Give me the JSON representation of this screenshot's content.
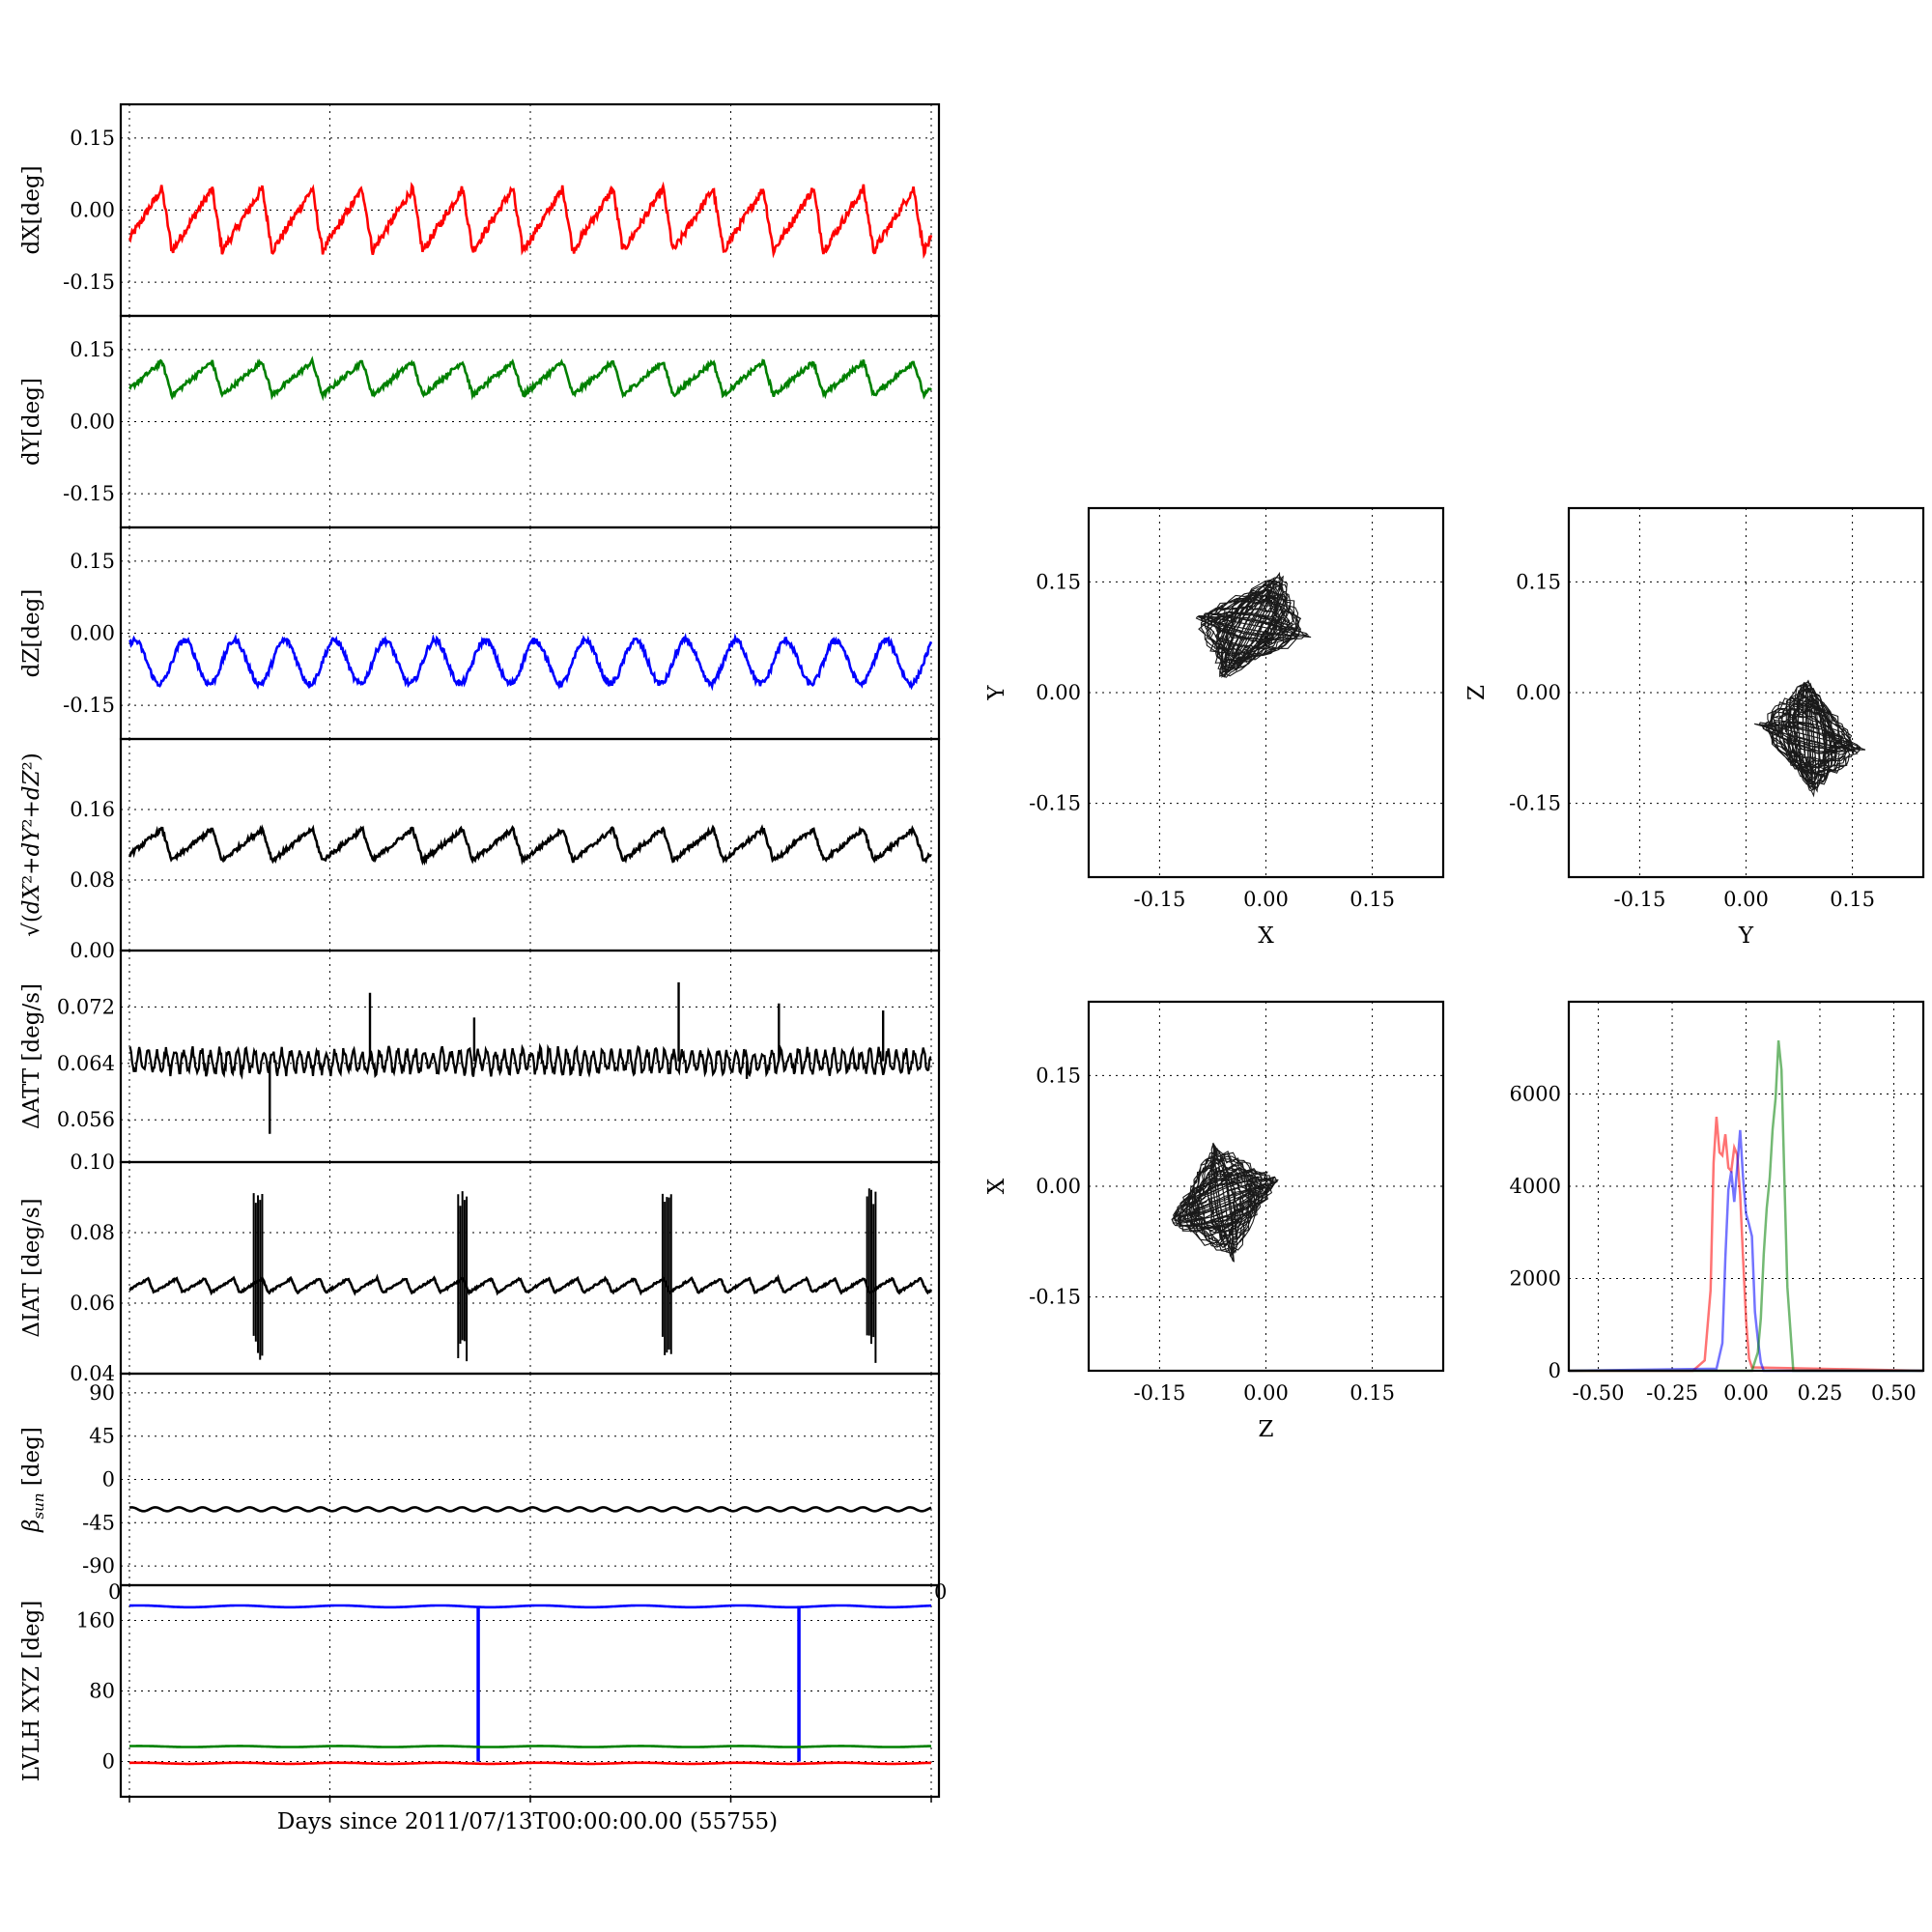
{
  "xlabel_bottom": "Days since 2011/07/13T00:00:00.00 (55755)",
  "stray_tick_left": "0",
  "stray_tick_right": "0",
  "colors": {
    "red": "#ff0000",
    "green": "#008000",
    "blue": "#0000ff",
    "black": "#000000"
  },
  "chart_data": [
    {
      "type": "line",
      "id": "dx",
      "ylabel": "dX[deg]",
      "ylim": [
        -0.22,
        0.22
      ],
      "yticks": [
        "-0.15",
        "0.00",
        "0.15"
      ],
      "ytick_values": [
        -0.15,
        0.0,
        0.15
      ],
      "grid": true,
      "series": [
        {
          "color": "#ff0000",
          "baseline": -0.02,
          "amplitude": 0.065,
          "cycles": 16,
          "shape": "sawtooth"
        }
      ]
    },
    {
      "type": "line",
      "id": "dy",
      "ylabel": "dY[deg]",
      "ylim": [
        -0.22,
        0.22
      ],
      "yticks": [
        "-0.15",
        "0.00",
        "0.15"
      ],
      "ytick_values": [
        -0.15,
        0.0,
        0.15
      ],
      "grid": true,
      "series": [
        {
          "color": "#008000",
          "baseline": 0.09,
          "amplitude": 0.035,
          "cycles": 16,
          "shape": "sawtooth"
        }
      ]
    },
    {
      "type": "line",
      "id": "dz",
      "ylabel": "dZ[deg]",
      "ylim": [
        -0.22,
        0.22
      ],
      "yticks": [
        "-0.15",
        "0.00",
        "0.15"
      ],
      "ytick_values": [
        -0.15,
        0.0,
        0.15
      ],
      "grid": true,
      "series": [
        {
          "color": "#0000ff",
          "baseline": -0.06,
          "amplitude": 0.045,
          "cycles": 16,
          "shape": "sine"
        }
      ]
    },
    {
      "type": "line",
      "id": "dr",
      "ylabel": "sqrt(dX²+dY²+dZ²)",
      "ylim": [
        0.0,
        0.24
      ],
      "yticks": [
        "0.00",
        "0.08",
        "0.16"
      ],
      "ytick_values": [
        0.0,
        0.08,
        0.16
      ],
      "grid": true,
      "series": [
        {
          "color": "#000000",
          "baseline": 0.12,
          "amplitude": 0.018,
          "cycles": 16,
          "shape": "sawtooth"
        }
      ]
    },
    {
      "type": "line",
      "id": "datt",
      "ylabel": "ΔATT [deg/s]",
      "ylim": [
        0.05,
        0.08
      ],
      "yticks": [
        "0.056",
        "0.064",
        "0.072"
      ],
      "ytick_values": [
        0.056,
        0.064,
        0.072
      ],
      "grid": true,
      "series": [
        {
          "color": "#000000",
          "baseline": 0.0643,
          "amplitude": 0.0015,
          "cycles": 90,
          "shape": "sine"
        }
      ],
      "spikes": [
        [
          0.175,
          0.054
        ],
        [
          0.3,
          0.074
        ],
        [
          0.43,
          0.0705
        ],
        [
          0.685,
          0.0755
        ],
        [
          0.81,
          0.0725
        ],
        [
          0.94,
          0.0715
        ],
        [
          0.77,
          0.0618
        ]
      ]
    },
    {
      "type": "line",
      "id": "diat",
      "ylabel": "ΔIAT [deg/s]",
      "ylim": [
        0.04,
        0.1
      ],
      "yticks": [
        "0.04",
        "0.06",
        "0.08",
        "0.10"
      ],
      "ytick_values": [
        0.04,
        0.06,
        0.08,
        0.1
      ],
      "grid": true,
      "series": [
        {
          "color": "#000000",
          "baseline": 0.065,
          "amplitude": 0.002,
          "cycles": 28,
          "shape": "sawtooth"
        }
      ],
      "bursts": [
        0.155,
        0.41,
        0.665,
        0.92
      ],
      "burst_range": [
        0.043,
        0.093
      ]
    },
    {
      "type": "line",
      "id": "beta",
      "ylabel": "β_sun [deg]",
      "ylim": [
        -110,
        110
      ],
      "yticks": [
        "-90",
        "-45",
        "0",
        "45",
        "90"
      ],
      "ytick_values": [
        -90,
        -45,
        0,
        45,
        90
      ],
      "grid": true,
      "series": [
        {
          "color": "#000000",
          "baseline": -31,
          "amplitude": 2,
          "cycles": 34,
          "shape": "sine"
        }
      ]
    },
    {
      "type": "line",
      "id": "lvlh",
      "ylabel": "LVLH XYZ [deg]",
      "ylim": [
        -40,
        200
      ],
      "yticks": [
        "0",
        "80",
        "160"
      ],
      "ytick_values": [
        0,
        80,
        160
      ],
      "grid": true,
      "series": [
        {
          "color": "#0000ff",
          "baseline": 176,
          "amplitude": 1,
          "cycles": 8,
          "shape": "sine",
          "drops": [
            0.435,
            0.835
          ]
        },
        {
          "color": "#008000",
          "baseline": 17,
          "amplitude": 0.6,
          "cycles": 8,
          "shape": "sine"
        },
        {
          "color": "#ff0000",
          "baseline": -2,
          "amplitude": 0.6,
          "cycles": 8,
          "shape": "sine"
        }
      ]
    },
    {
      "type": "scatter",
      "id": "xy",
      "xlabel": "X",
      "ylabel": "Y",
      "xlim": [
        -0.25,
        0.25
      ],
      "ylim": [
        -0.25,
        0.25
      ],
      "xticks": [
        "-0.15",
        "0.00",
        "0.15"
      ],
      "yticks": [
        "-0.15",
        "0.00",
        "0.15"
      ],
      "tick_values": [
        -0.15,
        0.0,
        0.15
      ],
      "grid": true,
      "cloud": {
        "cx": -0.02,
        "cy": 0.09,
        "rx": 0.065,
        "ry": 0.045,
        "rot": 25
      }
    },
    {
      "type": "scatter",
      "id": "yz",
      "xlabel": "Y",
      "ylabel": "Z",
      "xlim": [
        -0.25,
        0.25
      ],
      "ylim": [
        -0.25,
        0.25
      ],
      "xticks": [
        "-0.15",
        "0.00",
        "0.15"
      ],
      "yticks": [
        "-0.15",
        "0.00",
        "0.15"
      ],
      "tick_values": [
        -0.15,
        0.0,
        0.15
      ],
      "grid": true,
      "cloud": {
        "cx": 0.09,
        "cy": -0.06,
        "rx": 0.045,
        "ry": 0.06,
        "rot": 40
      }
    },
    {
      "type": "scatter",
      "id": "zx",
      "xlabel": "Z",
      "ylabel": "X",
      "xlim": [
        -0.25,
        0.25
      ],
      "ylim": [
        -0.25,
        0.25
      ],
      "xticks": [
        "-0.15",
        "0.00",
        "0.15"
      ],
      "yticks": [
        "-0.15",
        "0.00",
        "0.15"
      ],
      "tick_values": [
        -0.15,
        0.0,
        0.15
      ],
      "grid": true,
      "cloud": {
        "cx": -0.06,
        "cy": -0.02,
        "rx": 0.05,
        "ry": 0.06,
        "rot": -30
      }
    },
    {
      "type": "line",
      "id": "hist",
      "xlim": [
        -0.6,
        0.6
      ],
      "ylim": [
        0,
        8000
      ],
      "xticks": [
        "-0.50",
        "-0.25",
        "0.00",
        "0.25",
        "0.50"
      ],
      "xtick_values": [
        -0.5,
        -0.25,
        0.0,
        0.25,
        0.5
      ],
      "yticks": [
        "0",
        "2000",
        "4000",
        "6000"
      ],
      "ytick_values": [
        0,
        2000,
        4000,
        6000
      ],
      "grid": true,
      "series": [
        {
          "color": "#ff0000",
          "x": [
            -0.6,
            -0.18,
            -0.14,
            -0.12,
            -0.11,
            -0.1,
            -0.09,
            -0.08,
            -0.07,
            -0.06,
            -0.05,
            -0.04,
            -0.03,
            -0.02,
            -0.01,
            0.0,
            0.01,
            0.02,
            0.6
          ],
          "y": [
            0,
            0,
            300,
            1800,
            4600,
            5400,
            4800,
            4700,
            5100,
            4500,
            4400,
            4800,
            4700,
            3800,
            2500,
            1200,
            300,
            0,
            0
          ]
        },
        {
          "color": "#0000ff",
          "x": [
            -0.6,
            -0.1,
            -0.08,
            -0.07,
            -0.06,
            -0.05,
            -0.04,
            -0.03,
            -0.02,
            -0.01,
            0.0,
            0.01,
            0.02,
            0.03,
            0.04,
            0.05,
            0.06,
            0.6
          ],
          "y": [
            0,
            0,
            600,
            2500,
            3900,
            4300,
            3700,
            4300,
            5100,
            4300,
            3300,
            3100,
            2900,
            1400,
            600,
            100,
            0,
            0
          ]
        },
        {
          "color": "#008000",
          "x": [
            -0.6,
            0.02,
            0.04,
            0.05,
            0.06,
            0.07,
            0.08,
            0.09,
            0.1,
            0.11,
            0.12,
            0.13,
            0.14,
            0.16,
            0.6
          ],
          "y": [
            0,
            0,
            300,
            1200,
            2500,
            3400,
            4200,
            5200,
            5900,
            7200,
            6400,
            4200,
            1800,
            0,
            0
          ]
        }
      ]
    }
  ]
}
